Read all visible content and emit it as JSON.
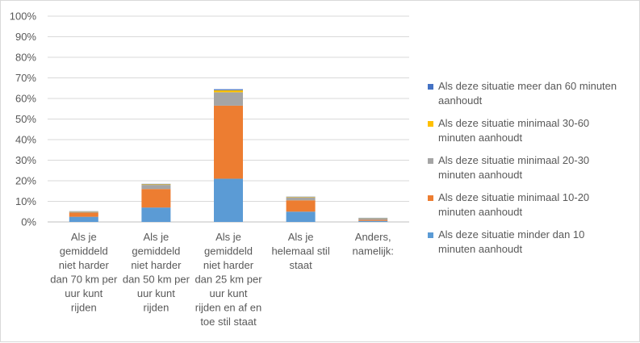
{
  "chart_data": {
    "type": "bar",
    "stacked": true,
    "title": "",
    "xlabel": "",
    "ylabel": "",
    "ylim": [
      0,
      100
    ],
    "yticks": [
      "0%",
      "10%",
      "20%",
      "30%",
      "40%",
      "50%",
      "60%",
      "70%",
      "80%",
      "90%",
      "100%"
    ],
    "categories": [
      [
        "Als je",
        "gemiddeld",
        "niet harder",
        "dan 70 km per",
        "uur kunt",
        "rijden"
      ],
      [
        "Als je",
        "gemiddeld",
        "niet harder",
        "dan 50 km per",
        "uur kunt",
        "rijden"
      ],
      [
        "Als je",
        "gemiddeld",
        "niet harder",
        "dan 25 km per",
        "uur kunt",
        "rijden en af en",
        "toe stil staat"
      ],
      [
        "Als je",
        "helemaal stil",
        "staat"
      ],
      [
        "Anders,",
        "namelijk:"
      ]
    ],
    "series": [
      {
        "name": "Als deze situatie minder dan 10 minuten aanhoudt",
        "legend_lines": [
          "Als deze situatie minder dan 10",
          "minuten aanhoudt"
        ],
        "color": "#5b9bd5",
        "values": [
          2.5,
          7.0,
          21.0,
          5.0,
          0.5
        ]
      },
      {
        "name": "Als deze situatie minimaal 10-20 minuten aanhoudt",
        "legend_lines": [
          "Als deze situatie minimaal 10-20",
          "minuten aanhoudt"
        ],
        "color": "#ed7d31",
        "values": [
          2.0,
          9.0,
          35.5,
          5.5,
          0.5
        ]
      },
      {
        "name": "Als deze situatie minimaal 20-30 minuten aanhoudt",
        "legend_lines": [
          "Als deze situatie minimaal 20-30",
          "minuten aanhoudt"
        ],
        "color": "#a5a5a5",
        "values": [
          0.5,
          2.0,
          6.5,
          1.5,
          0.8
        ]
      },
      {
        "name": "Als deze situatie minimaal 30-60 minuten aanhoudt",
        "legend_lines": [
          "Als deze situatie minimaal 30-60",
          "minuten aanhoudt"
        ],
        "color": "#ffc000",
        "values": [
          0.1,
          0.3,
          1.0,
          0.2,
          0.1
        ]
      },
      {
        "name": "Als deze situatie meer dan 60 minuten aanhoudt",
        "legend_lines": [
          "Als deze situatie meer dan 60 minuten",
          "aanhoudt"
        ],
        "color": "#4472c4",
        "values": [
          0.1,
          0.2,
          0.5,
          0.1,
          0.1
        ]
      }
    ],
    "legend_position": "right",
    "grid": true
  }
}
